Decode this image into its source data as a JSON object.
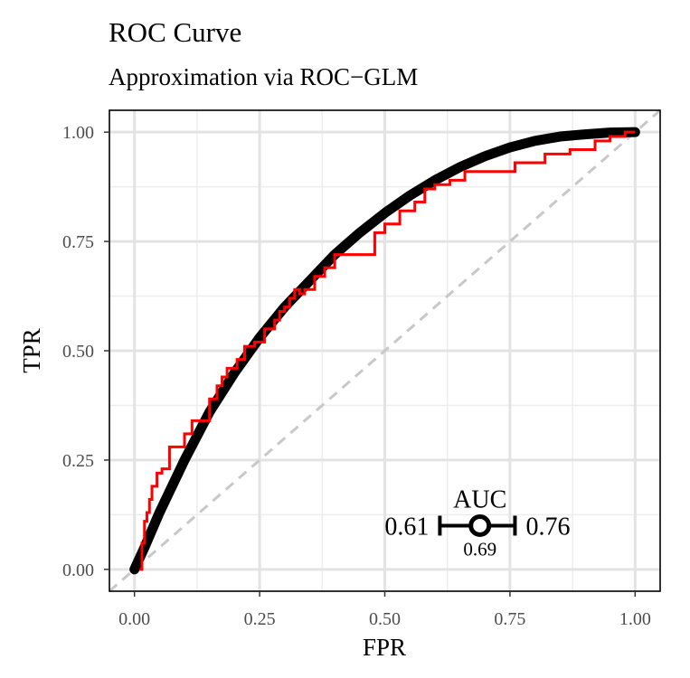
{
  "chart_data": {
    "type": "line",
    "title": "ROC Curve",
    "subtitle": "Approximation via ROC−GLM",
    "xlabel": "FPR",
    "ylabel": "TPR",
    "xlim": [
      -0.05,
      1.05
    ],
    "ylim": [
      -0.05,
      1.05
    ],
    "x_ticks": [
      0.0,
      0.25,
      0.5,
      0.75,
      1.0
    ],
    "y_ticks": [
      0.0,
      0.25,
      0.5,
      0.75,
      1.0
    ],
    "x_tick_labels": [
      "0.00",
      "0.25",
      "0.50",
      "0.75",
      "1.00"
    ],
    "y_tick_labels": [
      "0.00",
      "0.25",
      "0.50",
      "0.75",
      "1.00"
    ],
    "grid": true,
    "diagonal_reference": {
      "x": [
        0,
        1
      ],
      "y": [
        0,
        1
      ],
      "style": "dashed",
      "color": "#c8c8c8"
    },
    "series": [
      {
        "type": "smooth",
        "color": "#000000",
        "x": [
          0.0,
          0.02,
          0.05,
          0.1,
          0.15,
          0.2,
          0.25,
          0.3,
          0.35,
          0.4,
          0.45,
          0.5,
          0.55,
          0.6,
          0.65,
          0.7,
          0.75,
          0.8,
          0.85,
          0.9,
          0.95,
          1.0
        ],
        "y": [
          0.0,
          0.05,
          0.13,
          0.25,
          0.36,
          0.45,
          0.53,
          0.6,
          0.66,
          0.72,
          0.77,
          0.815,
          0.855,
          0.89,
          0.92,
          0.945,
          0.965,
          0.98,
          0.99,
          0.995,
          0.999,
          1.0
        ]
      },
      {
        "type": "empirical",
        "color": "#ff0000",
        "x": [
          0.01,
          0.015,
          0.015,
          0.02,
          0.02,
          0.025,
          0.025,
          0.03,
          0.03,
          0.035,
          0.035,
          0.045,
          0.045,
          0.055,
          0.055,
          0.07,
          0.07,
          0.1,
          0.1,
          0.115,
          0.115,
          0.15,
          0.15,
          0.165,
          0.165,
          0.175,
          0.175,
          0.185,
          0.185,
          0.205,
          0.205,
          0.22,
          0.22,
          0.24,
          0.24,
          0.26,
          0.26,
          0.28,
          0.28,
          0.29,
          0.29,
          0.3,
          0.3,
          0.31,
          0.31,
          0.32,
          0.32,
          0.33,
          0.33,
          0.34,
          0.34,
          0.36,
          0.36,
          0.38,
          0.38,
          0.4,
          0.4,
          0.42,
          0.42,
          0.48,
          0.48,
          0.5,
          0.5,
          0.53,
          0.53,
          0.56,
          0.56,
          0.58,
          0.58,
          0.6,
          0.6,
          0.63,
          0.63,
          0.66,
          0.66,
          0.7,
          0.7,
          0.76,
          0.76,
          0.82,
          0.82,
          0.87,
          0.87,
          0.92,
          0.92,
          0.95,
          0.95,
          0.98,
          0.98,
          1.0
        ],
        "y": [
          0.0,
          0.0,
          0.06,
          0.06,
          0.11,
          0.11,
          0.13,
          0.13,
          0.16,
          0.16,
          0.19,
          0.19,
          0.22,
          0.22,
          0.23,
          0.23,
          0.28,
          0.28,
          0.31,
          0.31,
          0.34,
          0.34,
          0.39,
          0.39,
          0.42,
          0.42,
          0.44,
          0.44,
          0.46,
          0.46,
          0.48,
          0.48,
          0.51,
          0.51,
          0.52,
          0.52,
          0.55,
          0.55,
          0.57,
          0.57,
          0.59,
          0.59,
          0.6,
          0.6,
          0.62,
          0.62,
          0.64,
          0.64,
          0.63,
          0.63,
          0.64,
          0.64,
          0.67,
          0.67,
          0.69,
          0.69,
          0.72,
          0.72,
          0.72,
          0.72,
          0.77,
          0.77,
          0.79,
          0.79,
          0.82,
          0.82,
          0.84,
          0.84,
          0.87,
          0.87,
          0.88,
          0.88,
          0.89,
          0.89,
          0.91,
          0.91,
          0.91,
          0.91,
          0.93,
          0.93,
          0.95,
          0.95,
          0.96,
          0.96,
          0.98,
          0.98,
          0.99,
          0.99,
          1.0,
          1.0
        ]
      }
    ],
    "auc": {
      "title": "AUC",
      "estimate": 0.69,
      "lower": 0.61,
      "upper": 0.76,
      "estimate_label": "0.69",
      "lower_label": "0.61",
      "upper_label": "0.76"
    }
  }
}
